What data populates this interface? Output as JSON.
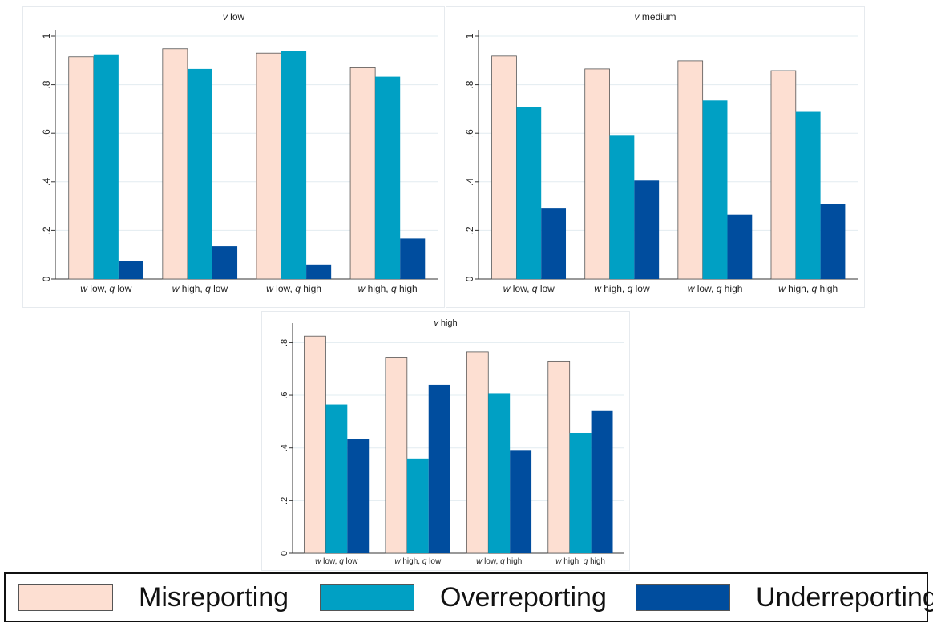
{
  "chart_data": [
    {
      "type": "bar",
      "title": "v low",
      "title_parts": {
        "italic": "v",
        "rest": " low"
      },
      "categories": [
        "w low, q low",
        "w high, q low",
        "w low, q high",
        "w high, q high"
      ],
      "category_parts": [
        [
          {
            "t": "w",
            "i": true
          },
          {
            "t": " low, ",
            "i": false
          },
          {
            "t": "q",
            "i": true
          },
          {
            "t": " low",
            "i": false
          }
        ],
        [
          {
            "t": "w",
            "i": true
          },
          {
            "t": " high, ",
            "i": false
          },
          {
            "t": "q",
            "i": true
          },
          {
            "t": " low",
            "i": false
          }
        ],
        [
          {
            "t": "w",
            "i": true
          },
          {
            "t": " low, ",
            "i": false
          },
          {
            "t": "q",
            "i": true
          },
          {
            "t": " high",
            "i": false
          }
        ],
        [
          {
            "t": "w",
            "i": true
          },
          {
            "t": " high, ",
            "i": false
          },
          {
            "t": "q",
            "i": true
          },
          {
            "t": " high",
            "i": false
          }
        ]
      ],
      "series": [
        {
          "name": "Misreporting",
          "values": [
            0.915,
            0.948,
            0.93,
            0.87
          ]
        },
        {
          "name": "Overreporting",
          "values": [
            0.925,
            0.865,
            0.94,
            0.833
          ]
        },
        {
          "name": "Underreporting",
          "values": [
            0.075,
            0.135,
            0.06,
            0.167
          ]
        }
      ],
      "ylim": [
        0,
        1
      ],
      "yticks": [
        0,
        0.2,
        0.4,
        0.6,
        0.8,
        1
      ],
      "ytick_labels": [
        "0",
        ".2",
        ".4",
        ".6",
        ".8",
        "1"
      ],
      "grid": true
    },
    {
      "type": "bar",
      "title": "v medium",
      "title_parts": {
        "italic": "v",
        "rest": " medium"
      },
      "categories": [
        "w low, q low",
        "w high, q low",
        "w low, q high",
        "w high, q high"
      ],
      "category_parts": [
        [
          {
            "t": "w",
            "i": true
          },
          {
            "t": " low, ",
            "i": false
          },
          {
            "t": "q",
            "i": true
          },
          {
            "t": " low",
            "i": false
          }
        ],
        [
          {
            "t": "w",
            "i": true
          },
          {
            "t": " high, ",
            "i": false
          },
          {
            "t": "q",
            "i": true
          },
          {
            "t": " low",
            "i": false
          }
        ],
        [
          {
            "t": "w",
            "i": true
          },
          {
            "t": " low, ",
            "i": false
          },
          {
            "t": "q",
            "i": true
          },
          {
            "t": " high",
            "i": false
          }
        ],
        [
          {
            "t": "w",
            "i": true
          },
          {
            "t": " high, ",
            "i": false
          },
          {
            "t": "q",
            "i": true
          },
          {
            "t": " high",
            "i": false
          }
        ]
      ],
      "series": [
        {
          "name": "Misreporting",
          "values": [
            0.918,
            0.865,
            0.898,
            0.858
          ]
        },
        {
          "name": "Overreporting",
          "values": [
            0.708,
            0.593,
            0.735,
            0.688
          ]
        },
        {
          "name": "Underreporting",
          "values": [
            0.29,
            0.405,
            0.265,
            0.31
          ]
        }
      ],
      "ylim": [
        0,
        1
      ],
      "yticks": [
        0,
        0.2,
        0.4,
        0.6,
        0.8,
        1
      ],
      "ytick_labels": [
        "0",
        ".2",
        ".4",
        ".6",
        ".8",
        "1"
      ],
      "grid": true
    },
    {
      "type": "bar",
      "title": "v high",
      "title_parts": {
        "italic": "v",
        "rest": " high"
      },
      "categories": [
        "w low, q low",
        "w high, q low",
        "w low, q high",
        "w high, q high"
      ],
      "category_parts": [
        [
          {
            "t": "w",
            "i": true
          },
          {
            "t": " low, ",
            "i": false
          },
          {
            "t": "q",
            "i": true
          },
          {
            "t": " low",
            "i": false
          }
        ],
        [
          {
            "t": "w",
            "i": true
          },
          {
            "t": " high, ",
            "i": false
          },
          {
            "t": "q",
            "i": true
          },
          {
            "t": " low",
            "i": false
          }
        ],
        [
          {
            "t": "w",
            "i": true
          },
          {
            "t": " low, ",
            "i": false
          },
          {
            "t": "q",
            "i": true
          },
          {
            "t": " high",
            "i": false
          }
        ],
        [
          {
            "t": "w",
            "i": true
          },
          {
            "t": " high, ",
            "i": false
          },
          {
            "t": "q",
            "i": true
          },
          {
            "t": " high",
            "i": false
          }
        ]
      ],
      "series": [
        {
          "name": "Misreporting",
          "values": [
            0.825,
            0.745,
            0.765,
            0.73
          ]
        },
        {
          "name": "Overreporting",
          "values": [
            0.565,
            0.36,
            0.608,
            0.457
          ]
        },
        {
          "name": "Underreporting",
          "values": [
            0.435,
            0.64,
            0.392,
            0.543
          ]
        }
      ],
      "ylim": [
        0,
        0.85
      ],
      "yticks": [
        0,
        0.2,
        0.4,
        0.6,
        0.8
      ],
      "ytick_labels": [
        "0",
        ".2",
        ".4",
        ".6",
        ".8"
      ],
      "grid": true
    }
  ],
  "legend": {
    "items": [
      {
        "label": "Misreporting",
        "color": "#fddfd2"
      },
      {
        "label": "Overreporting",
        "color": "#00a0c4"
      },
      {
        "label": "Underreporting",
        "color": "#004d9e"
      }
    ]
  },
  "colors": {
    "misreporting": "#fddfd2",
    "overreporting": "#00a0c4",
    "underreporting": "#004d9e",
    "grid": "#e2ecf0"
  }
}
